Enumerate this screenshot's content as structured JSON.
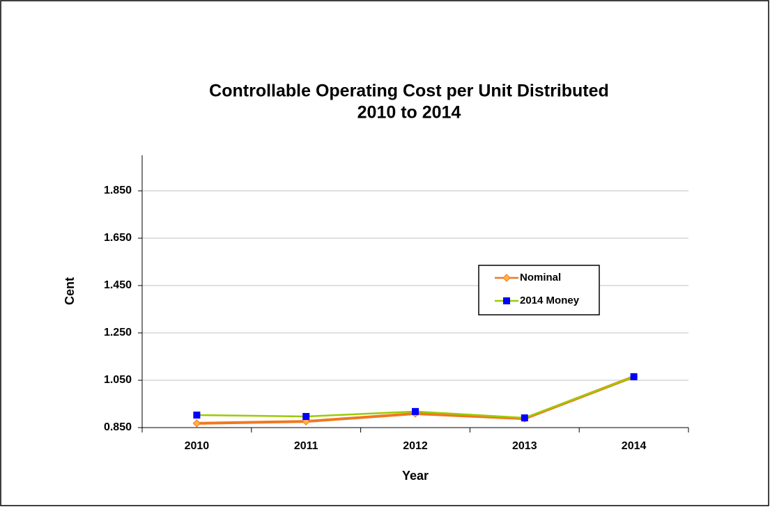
{
  "chart_data": {
    "type": "line",
    "title": [
      "Controllable Operating Cost per Unit Distributed",
      "2010 to 2014"
    ],
    "x_label": "Year",
    "y_label": "Cent",
    "categories": [
      "2010",
      "2011",
      "2012",
      "2013",
      "2014"
    ],
    "series": [
      {
        "name": "Nominal",
        "color": "#f07820",
        "marker_color": "#ffb347",
        "marker": "diamond",
        "values": [
          0.868,
          0.876,
          0.909,
          0.888,
          1.065
        ]
      },
      {
        "name": "2014 Money",
        "color": "#99cc00",
        "marker_color": "#0000ff",
        "marker": "square",
        "values": [
          0.903,
          0.897,
          0.918,
          0.891,
          1.065
        ]
      }
    ],
    "ylim": [
      0.85,
      2.0
    ],
    "yticks": [
      {
        "value": 0.85,
        "label": "0.850"
      },
      {
        "value": 1.05,
        "label": "1.050"
      },
      {
        "value": 1.25,
        "label": "1.250"
      },
      {
        "value": 1.45,
        "label": "1.450"
      },
      {
        "value": 1.65,
        "label": "1.650"
      },
      {
        "value": 1.85,
        "label": "1.850"
      }
    ],
    "grid": true
  }
}
